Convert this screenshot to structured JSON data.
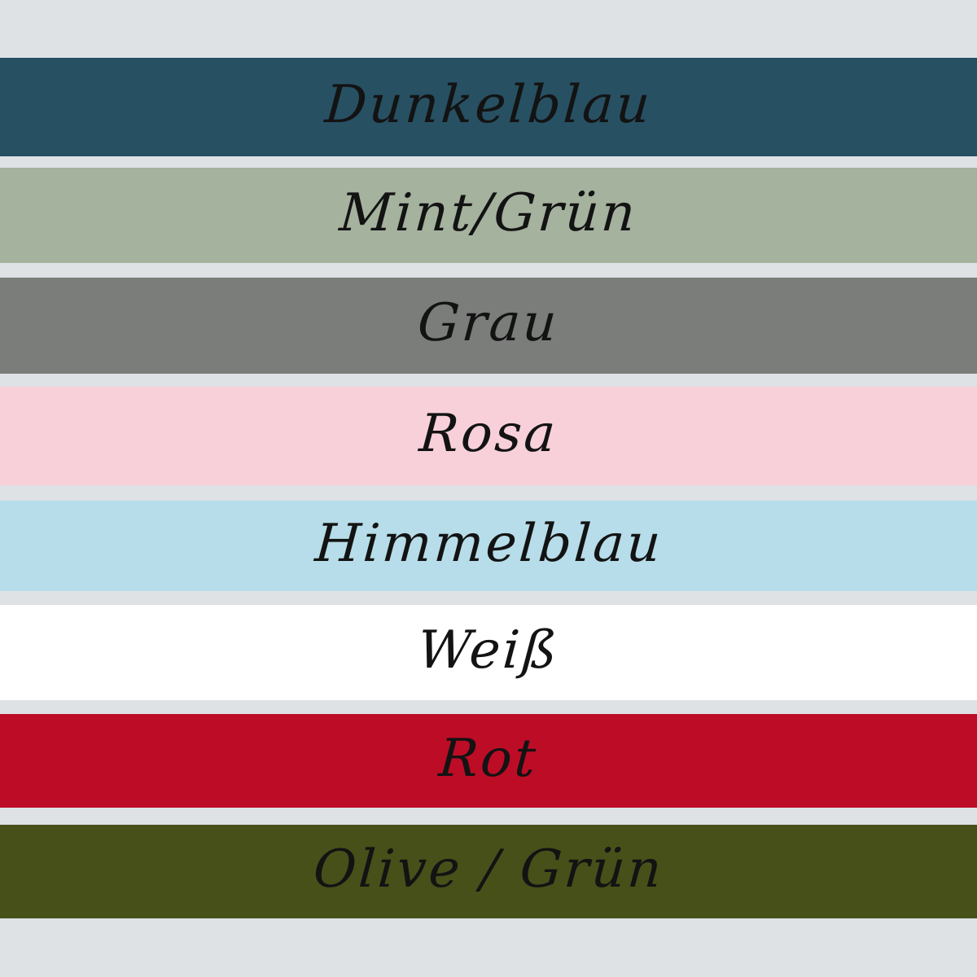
{
  "page": {
    "background_color": "#dee2e5",
    "label_text_color": "#131313"
  },
  "swatches": [
    {
      "label": "Dunkelblau",
      "color": "#275063"
    },
    {
      "label": "Mint/Grün",
      "color": "#a4b29e"
    },
    {
      "label": "Grau",
      "color": "#7b7d7b"
    },
    {
      "label": "Rosa",
      "color": "#f8d0da"
    },
    {
      "label": "Himmelblau",
      "color": "#b6dde9"
    },
    {
      "label": "Weiß",
      "color": "#ffffff"
    },
    {
      "label": "Rot",
      "color": "#bd0c26"
    },
    {
      "label": "Olive / Grün",
      "color": "#475019"
    }
  ]
}
